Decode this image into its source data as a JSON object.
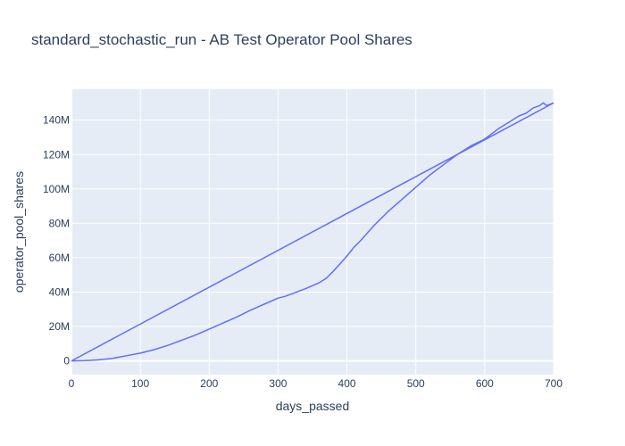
{
  "chart_data": {
    "type": "line",
    "title": "standard_stochastic_run - AB Test Operator Pool Shares",
    "xlabel": "days_passed",
    "ylabel": "operator_pool_shares",
    "xlim": [
      0,
      700
    ],
    "ylim": [
      -8000000,
      158000000
    ],
    "x_ticks": [
      0,
      100,
      200,
      300,
      400,
      500,
      600,
      700
    ],
    "x_tick_labels": [
      "0",
      "100",
      "200",
      "300",
      "400",
      "500",
      "600",
      "700"
    ],
    "y_ticks": [
      0,
      20000000,
      40000000,
      60000000,
      80000000,
      100000000,
      120000000,
      140000000
    ],
    "y_tick_labels": [
      "0",
      "20M",
      "40M",
      "60M",
      "80M",
      "100M",
      "120M",
      "140M"
    ],
    "grid": true,
    "legend": "none",
    "colors": {
      "line": "#636efa",
      "plot_bg": "#e5ecf6",
      "grid": "#ffffff",
      "text": "#2a3f5f"
    },
    "series": [
      {
        "x": [
          0,
          700
        ],
        "y": [
          0,
          150000000
        ]
      },
      {
        "x": [
          0,
          20,
          40,
          60,
          80,
          100,
          120,
          140,
          160,
          180,
          200,
          220,
          240,
          260,
          280,
          300,
          310,
          320,
          340,
          360,
          370,
          380,
          390,
          400,
          410,
          420,
          440,
          460,
          480,
          500,
          520,
          540,
          550,
          560,
          580,
          590,
          600,
          620,
          640,
          650,
          660,
          670,
          680,
          685,
          690,
          700
        ],
        "y": [
          0,
          200000,
          600000,
          1500000,
          3000000,
          4500000,
          6500000,
          9000000,
          12000000,
          15000000,
          18500000,
          22000000,
          25500000,
          29500000,
          33000000,
          36500000,
          37500000,
          39000000,
          42000000,
          45500000,
          48000000,
          52000000,
          56500000,
          61000000,
          66000000,
          70000000,
          79000000,
          87000000,
          94000000,
          101000000,
          108000000,
          114000000,
          117000000,
          120000000,
          125000000,
          127000000,
          129000000,
          135000000,
          140000000,
          142500000,
          144000000,
          147000000,
          148500000,
          150000000,
          148500000,
          150000000
        ]
      }
    ]
  }
}
